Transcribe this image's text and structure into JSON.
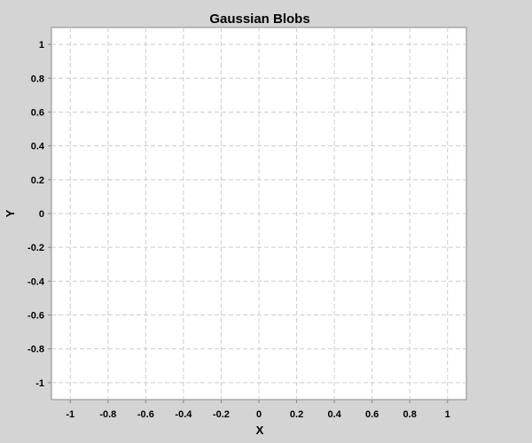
{
  "chart_data": {
    "type": "scatter",
    "title": "Gaussian Blobs",
    "xlabel": "X",
    "ylabel": "Y",
    "xlim": [
      -1.1,
      1.1
    ],
    "ylim": [
      -1.1,
      1.1
    ],
    "xticks": [
      -1,
      -0.8,
      -0.6,
      -0.4,
      -0.2,
      0,
      0.2,
      0.4,
      0.6,
      0.8,
      1
    ],
    "yticks": [
      -1,
      -0.8,
      -0.6,
      -0.4,
      -0.2,
      0,
      0.2,
      0.4,
      0.6,
      0.8,
      1
    ],
    "grid": true,
    "series": []
  },
  "colors": {
    "background": "#d4d4d4",
    "plot_background": "#ffffff",
    "grid": "#cccccc",
    "axis": "#888888"
  }
}
